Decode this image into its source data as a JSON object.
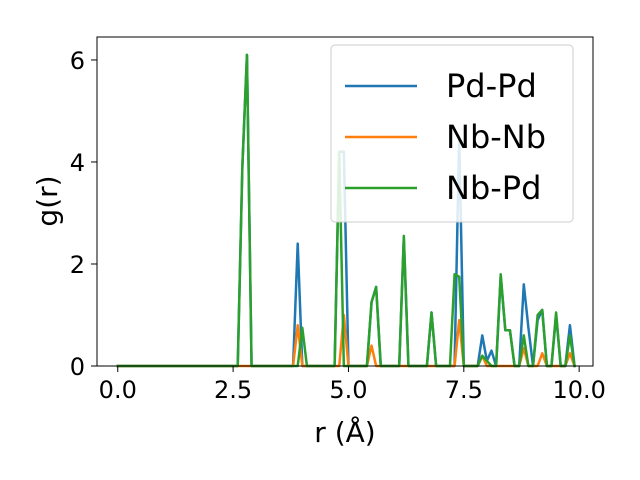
{
  "chart_data": {
    "type": "line",
    "xlabel": "r (Å)",
    "ylabel": "g(r)",
    "xlim": [
      -0.45,
      10.3
    ],
    "ylim": [
      0,
      6.45
    ],
    "xticks": [
      0.0,
      2.5,
      5.0,
      7.5,
      10.0
    ],
    "xtick_labels": [
      "0.0",
      "2.5",
      "5.0",
      "7.5",
      "10.0"
    ],
    "yticks": [
      0,
      2,
      4,
      6
    ],
    "ytick_labels": [
      "0",
      "2",
      "4",
      "6"
    ],
    "grid": false,
    "legend_position": "top-right",
    "series": [
      {
        "name": "Pd-Pd",
        "color": "#1f77b4",
        "x": [
          0.0,
          2.6,
          2.7,
          2.8,
          2.9,
          3.0,
          3.8,
          3.9,
          4.0,
          4.1,
          4.7,
          4.8,
          4.9,
          5.0,
          5.4,
          5.5,
          5.6,
          5.7,
          6.1,
          6.2,
          6.3,
          6.7,
          6.8,
          6.9,
          7.3,
          7.4,
          7.5,
          7.8,
          7.9,
          8.0,
          8.1,
          8.2,
          8.3,
          8.4,
          8.5,
          8.6,
          8.7,
          8.8,
          8.9,
          9.0,
          9.1,
          9.2,
          9.3,
          9.4,
          9.5,
          9.6,
          9.7,
          9.8,
          9.9
        ],
        "y": [
          0.0,
          0.0,
          3.9,
          6.1,
          0.0,
          0.0,
          0.0,
          2.4,
          0.0,
          0.0,
          0.0,
          4.2,
          4.2,
          0.0,
          0.0,
          1.25,
          1.55,
          0.0,
          0.0,
          2.5,
          0.0,
          0.0,
          1.05,
          0.0,
          0.0,
          4.5,
          0.0,
          0.0,
          0.6,
          0.1,
          0.3,
          0.0,
          1.75,
          0.7,
          0.7,
          0.0,
          0.0,
          1.6,
          0.75,
          0.0,
          0.9,
          1.1,
          0.0,
          0.0,
          1.0,
          0.0,
          0.0,
          0.8,
          0.0
        ]
      },
      {
        "name": "Nb-Nb",
        "color": "#ff7f0e",
        "x": [
          0.0,
          3.8,
          3.9,
          4.0,
          4.1,
          4.8,
          4.9,
          5.0,
          5.4,
          5.5,
          5.6,
          7.3,
          7.4,
          7.5,
          7.8,
          7.9,
          8.0,
          8.1,
          8.7,
          8.8,
          8.9,
          9.1,
          9.2,
          9.3,
          9.7,
          9.8,
          9.9
        ],
        "y": [
          0.0,
          0.0,
          0.8,
          0.0,
          0.0,
          0.0,
          1.0,
          0.0,
          0.0,
          0.4,
          0.0,
          0.0,
          0.9,
          0.0,
          0.0,
          0.2,
          0.0,
          0.0,
          0.0,
          0.35,
          0.0,
          0.0,
          0.25,
          0.0,
          0.0,
          0.25,
          0.0
        ]
      },
      {
        "name": "Nb-Pd",
        "color": "#2ca02c",
        "x": [
          0.0,
          2.6,
          2.7,
          2.8,
          2.9,
          3.0,
          3.9,
          4.0,
          4.1,
          4.7,
          4.8,
          4.9,
          5.0,
          5.4,
          5.5,
          5.6,
          5.7,
          6.1,
          6.2,
          6.3,
          6.7,
          6.8,
          6.9,
          7.2,
          7.3,
          7.4,
          7.5,
          7.8,
          7.9,
          8.0,
          8.1,
          8.2,
          8.3,
          8.4,
          8.5,
          8.6,
          8.7,
          8.8,
          8.9,
          9.0,
          9.1,
          9.2,
          9.3,
          9.4,
          9.5,
          9.6,
          9.7,
          9.8,
          9.9
        ],
        "y": [
          0.0,
          0.0,
          3.9,
          6.1,
          0.0,
          0.0,
          0.0,
          0.75,
          0.0,
          0.0,
          4.2,
          0.0,
          0.0,
          0.0,
          1.25,
          1.55,
          0.0,
          0.0,
          2.55,
          0.0,
          0.0,
          1.05,
          0.0,
          0.0,
          1.8,
          1.75,
          0.0,
          0.0,
          0.2,
          0.1,
          0.0,
          0.0,
          1.8,
          0.7,
          0.7,
          0.0,
          0.0,
          0.6,
          0.0,
          0.0,
          1.0,
          1.1,
          0.0,
          0.0,
          1.05,
          0.0,
          0.0,
          0.6,
          0.0
        ]
      }
    ]
  }
}
